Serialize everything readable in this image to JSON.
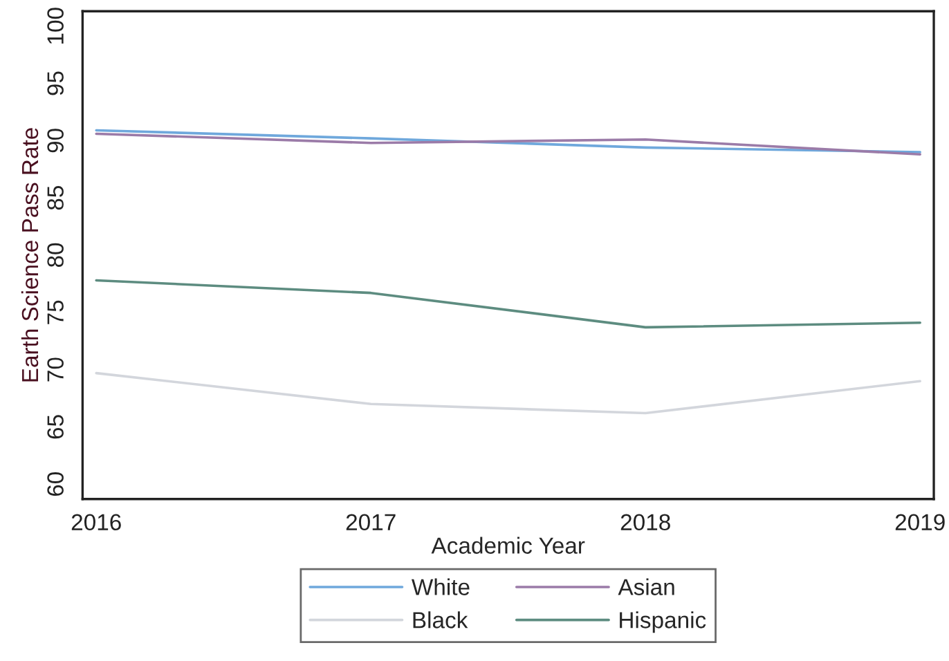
{
  "chart_data": {
    "type": "line",
    "xlabel": "Academic Year",
    "ylabel": "Earth Science Pass Rate",
    "x": [
      2016,
      2017,
      2018,
      2019
    ],
    "series": [
      {
        "name": "White",
        "color": "#6fa8dc",
        "values": [
          90.9,
          90.2,
          89.4,
          89.0
        ]
      },
      {
        "name": "Black",
        "color": "#d3d6dc",
        "values": [
          69.7,
          67.0,
          66.2,
          69.0
        ]
      },
      {
        "name": "Asian",
        "color": "#9b7ba8",
        "values": [
          90.6,
          89.8,
          90.1,
          88.8
        ]
      },
      {
        "name": "Hispanic",
        "color": "#5d8c80",
        "values": [
          77.8,
          76.7,
          73.7,
          74.1
        ]
      }
    ],
    "xlim": [
      2015.95,
      2019.05
    ],
    "ylim": [
      58.7,
      101.3
    ],
    "xticks": [
      2016,
      2017,
      2018,
      2019
    ],
    "yticks": [
      60,
      65,
      70,
      75,
      80,
      85,
      90,
      95,
      100
    ],
    "grid": false,
    "legend": "bottom",
    "marker": "none",
    "line_style": "solid"
  }
}
